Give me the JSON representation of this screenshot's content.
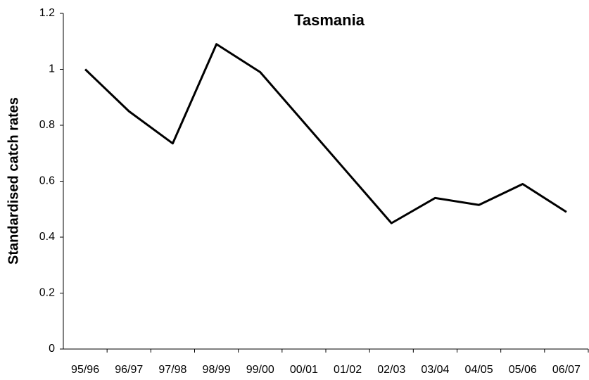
{
  "chart_data": {
    "type": "line",
    "title": "Tasmania",
    "y_label": "Standardised catch rates",
    "categories": [
      "95/96",
      "96/97",
      "97/98",
      "98/99",
      "99/00",
      "00/01",
      "01/02",
      "02/03",
      "03/04",
      "04/05",
      "05/06",
      "06/07"
    ],
    "values": [
      1.0,
      0.85,
      0.735,
      1.09,
      0.99,
      0.81,
      0.63,
      0.45,
      0.54,
      0.515,
      0.59,
      0.49
    ],
    "color": "#000000",
    "ylim": [
      0,
      1.2
    ],
    "yticks": [
      0,
      0.2,
      0.4,
      0.6,
      0.8,
      1,
      1.2
    ],
    "grid": false
  }
}
